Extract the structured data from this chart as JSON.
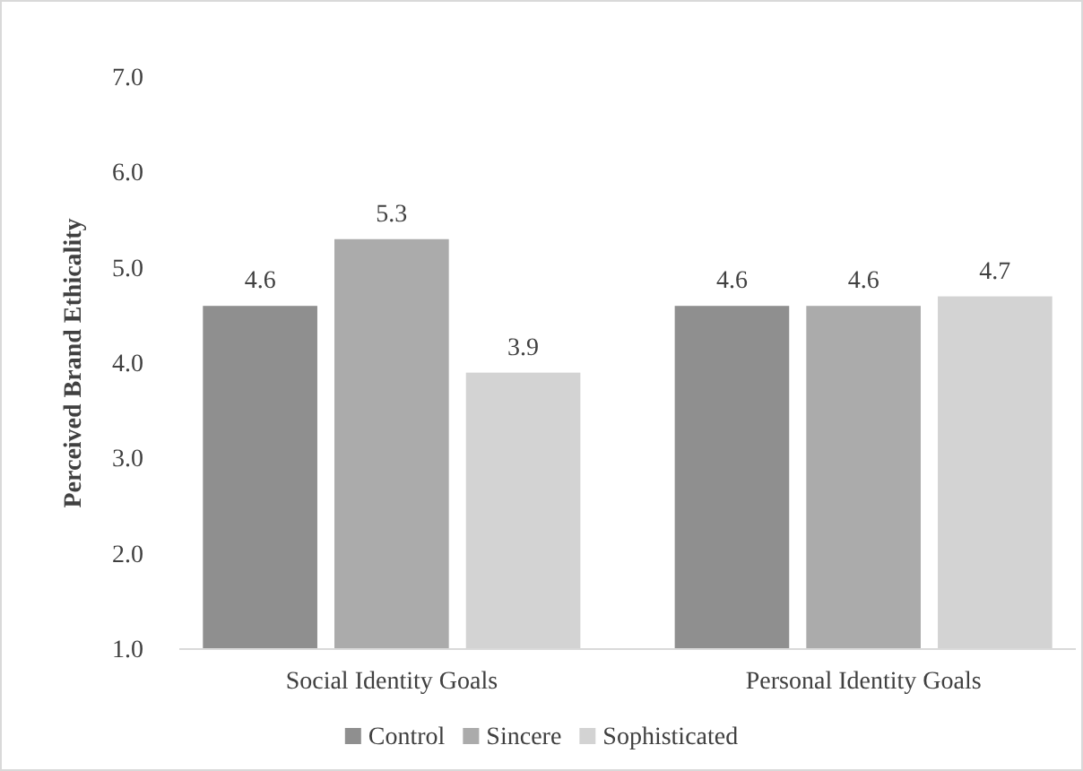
{
  "chart_data": {
    "type": "bar",
    "ylabel": "Perceived Brand Ethicality",
    "categories": [
      "Social Identity Goals",
      "Personal Identity Goals"
    ],
    "series": [
      {
        "name": "Control",
        "color": "#8f8f8f",
        "values": [
          4.6,
          4.6
        ]
      },
      {
        "name": "Sincere",
        "color": "#ababab",
        "values": [
          5.3,
          4.6
        ]
      },
      {
        "name": "Sophisticated",
        "color": "#d3d3d3",
        "values": [
          3.9,
          4.7
        ]
      }
    ],
    "ylim": [
      1,
      7
    ],
    "yticks": [
      {
        "value": 1,
        "label": "1.0"
      },
      {
        "value": 2,
        "label": "2.0"
      },
      {
        "value": 3,
        "label": "3.0"
      },
      {
        "value": 4,
        "label": "4.0"
      },
      {
        "value": 5,
        "label": "5.0"
      },
      {
        "value": 6,
        "label": "6.0"
      },
      {
        "value": 7,
        "label": "7.0"
      }
    ],
    "data_labels": true,
    "grid": false,
    "legend": "bottom"
  }
}
